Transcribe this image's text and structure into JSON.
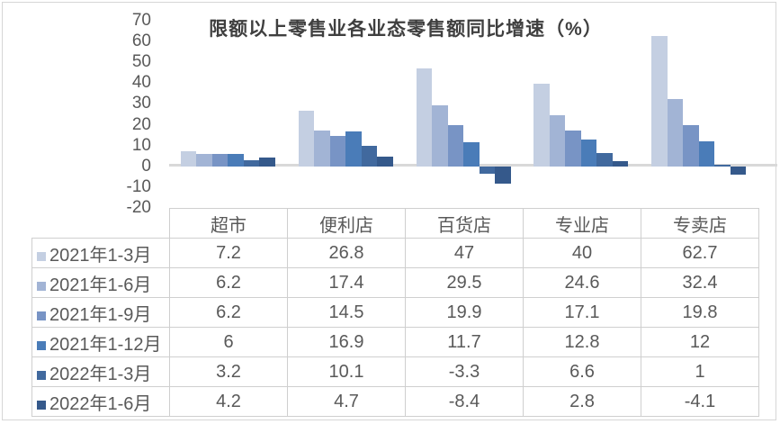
{
  "chart_data": {
    "type": "bar",
    "title": "限额以上零售业各业态零售额同比增速（%）",
    "categories": [
      "超市",
      "便利店",
      "百货店",
      "专业店",
      "专卖店"
    ],
    "series": [
      {
        "name": "2021年1-3月",
        "color": "#C4CFE2",
        "values": [
          7.2,
          26.8,
          47,
          40,
          62.7
        ]
      },
      {
        "name": "2021年1-6月",
        "color": "#A2B4D5",
        "values": [
          6.2,
          17.4,
          29.5,
          24.6,
          32.4
        ]
      },
      {
        "name": "2021年1-9月",
        "color": "#7894C5",
        "values": [
          6.2,
          14.5,
          19.9,
          17.1,
          19.8
        ]
      },
      {
        "name": "2021年1-12月",
        "color": "#4A7CB8",
        "values": [
          6,
          16.9,
          11.7,
          12.8,
          12
        ]
      },
      {
        "name": "2022年1-3月",
        "color": "#41699E",
        "values": [
          3.2,
          10.1,
          -3.3,
          6.6,
          1
        ]
      },
      {
        "name": "2022年1-6月",
        "color": "#35598B",
        "values": [
          4.2,
          4.7,
          -8.4,
          2.8,
          -4.1
        ]
      }
    ],
    "y_axis": {
      "min": -20,
      "max": 70,
      "step": 10,
      "ticks": [
        "70",
        "60",
        "50",
        "40",
        "30",
        "20",
        "10",
        "0",
        "-10",
        "-20"
      ]
    },
    "grid": false,
    "legend_position": "data-table-rows",
    "data_table_shown": true
  },
  "table": {
    "column_headers": [
      "超市",
      "便利店",
      "百货店",
      "专业店",
      "专卖店"
    ]
  },
  "colors": {
    "axis_line": "#d9d9d9",
    "table_border": "#cfcfcf",
    "text": "#595959",
    "title_text": "#3f3f3f"
  }
}
